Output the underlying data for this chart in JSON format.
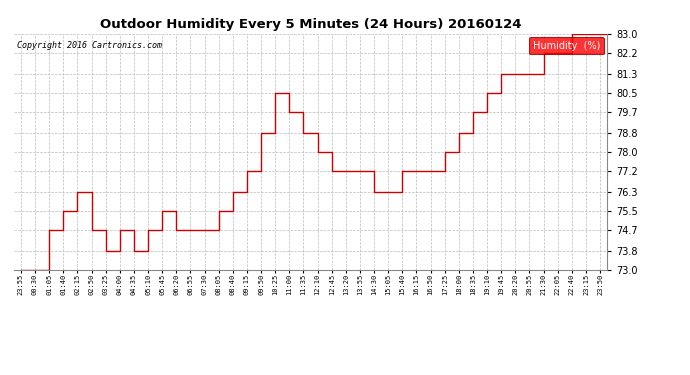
{
  "title": "Outdoor Humidity Every 5 Minutes (24 Hours) 20160124",
  "copyright": "Copyright 2016 Cartronics.com",
  "legend_label": "Humidity  (%)",
  "legend_bg": "#ff0000",
  "legend_text_color": "#ffffff",
  "line_color": "#cc0000",
  "background_color": "#ffffff",
  "grid_color": "#bbbbbb",
  "ylim": [
    73.0,
    83.0
  ],
  "yticks": [
    73.0,
    73.8,
    74.7,
    75.5,
    76.3,
    77.2,
    78.0,
    78.8,
    79.7,
    80.5,
    81.3,
    82.2,
    83.0
  ],
  "x_labels": [
    "23:55",
    "00:30",
    "01:05",
    "01:40",
    "02:15",
    "02:50",
    "03:25",
    "04:00",
    "04:35",
    "05:10",
    "05:45",
    "06:20",
    "06:55",
    "07:30",
    "08:05",
    "08:40",
    "09:15",
    "09:50",
    "10:25",
    "11:00",
    "11:35",
    "12:10",
    "12:45",
    "13:20",
    "13:55",
    "14:30",
    "15:05",
    "15:40",
    "16:15",
    "16:50",
    "17:25",
    "18:00",
    "18:35",
    "19:10",
    "19:45",
    "20:20",
    "20:55",
    "21:30",
    "22:05",
    "22:40",
    "23:15",
    "23:50",
    "23:55"
  ],
  "humidity_data": [
    [
      0,
      73.0
    ],
    [
      1,
      73.0
    ],
    [
      2,
      74.7
    ],
    [
      3,
      75.5
    ],
    [
      4,
      76.3
    ],
    [
      5,
      74.7
    ],
    [
      6,
      73.8
    ],
    [
      7,
      74.7
    ],
    [
      8,
      73.8
    ],
    [
      9,
      74.7
    ],
    [
      10,
      75.5
    ],
    [
      11,
      74.7
    ],
    [
      12,
      74.7
    ],
    [
      13,
      74.7
    ],
    [
      14,
      75.5
    ],
    [
      15,
      76.3
    ],
    [
      16,
      77.2
    ],
    [
      17,
      78.8
    ],
    [
      18,
      80.5
    ],
    [
      19,
      79.7
    ],
    [
      20,
      78.8
    ],
    [
      21,
      78.0
    ],
    [
      22,
      77.2
    ],
    [
      23,
      77.2
    ],
    [
      24,
      77.2
    ],
    [
      25,
      76.3
    ],
    [
      26,
      76.3
    ],
    [
      27,
      77.2
    ],
    [
      28,
      77.2
    ],
    [
      29,
      77.2
    ],
    [
      30,
      78.0
    ],
    [
      31,
      78.8
    ],
    [
      32,
      79.7
    ],
    [
      33,
      80.5
    ],
    [
      34,
      81.3
    ],
    [
      35,
      81.3
    ],
    [
      36,
      81.3
    ],
    [
      37,
      82.2
    ],
    [
      38,
      82.2
    ],
    [
      39,
      83.0
    ],
    [
      40,
      83.0
    ],
    [
      41,
      83.0
    ],
    [
      42,
      83.0
    ]
  ]
}
